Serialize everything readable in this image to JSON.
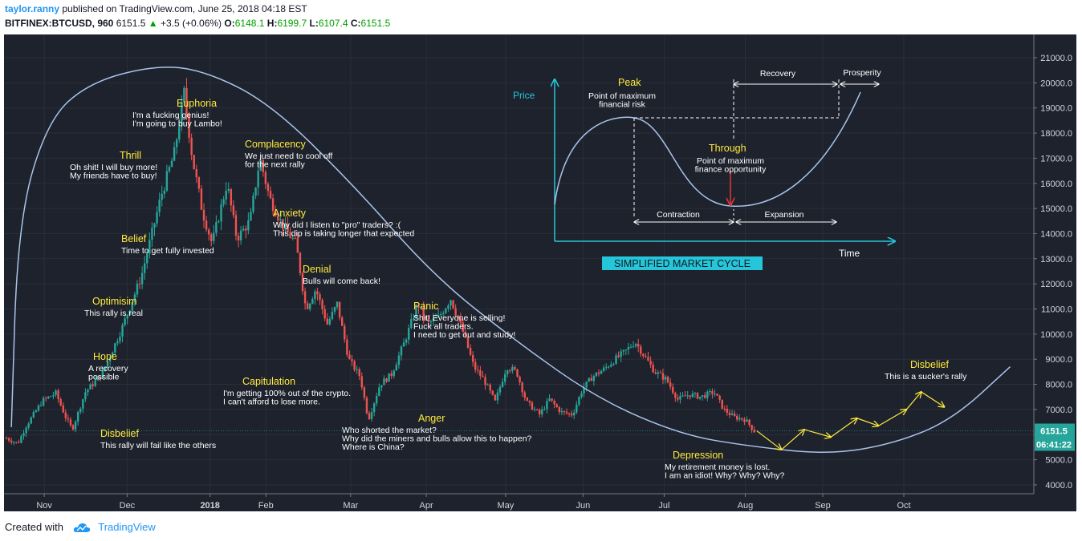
{
  "header": {
    "user": "taylor.ranny",
    "published": "published on TradingView.com, June 25, 2018 04:18 EST",
    "symbol": "BITFINEX:BTCUSD, 960",
    "last": "6151.5",
    "change": "+3.5 (+0.06%)",
    "open_label": "O:",
    "open": "6148.1",
    "high_label": "H:",
    "high": "6199.7",
    "low_label": "L:",
    "low": "6107.4",
    "close_label": "C:",
    "close": "6151.5"
  },
  "footer": {
    "created": "Created with",
    "brand": "TradingView"
  },
  "colors": {
    "up": "#26a69a",
    "down": "#ef5350",
    "curve": "#a9c4ea",
    "yellow": "#ffeb3b",
    "cyan": "#26c6da",
    "badge": "#26a69a"
  },
  "price_badge": {
    "price": "6151.5",
    "countdown": "06:41:22"
  },
  "chart_data": {
    "type": "candlestick",
    "symbol": "BITFINEX:BTCUSD",
    "interval": "960",
    "x_ticks": [
      "Nov",
      "Dec",
      "2018",
      "Feb",
      "Mar",
      "Apr",
      "May",
      "Jun",
      "Jul",
      "Aug",
      "Sep",
      "Oct"
    ],
    "y_ticks": [
      "4000.0",
      "5000.0",
      "6000.0",
      "7000.0",
      "8000.0",
      "9000.0",
      "10000.0",
      "11000.0",
      "12000.0",
      "13000.0",
      "14000.0",
      "15000.0",
      "16000.0",
      "17000.0",
      "18000.0",
      "19000.0",
      "20000.0",
      "21000.0"
    ],
    "ylim": [
      3500,
      21900
    ],
    "price_path": [
      {
        "x": 0.0,
        "y": 5850
      },
      {
        "x": 0.7,
        "y": 5650
      },
      {
        "x": 1.2,
        "y": 6350
      },
      {
        "x": 2.2,
        "y": 7350
      },
      {
        "x": 3.0,
        "y": 7650
      },
      {
        "x": 3.6,
        "y": 6700
      },
      {
        "x": 4.0,
        "y": 6200
      },
      {
        "x": 4.8,
        "y": 7700
      },
      {
        "x": 5.8,
        "y": 8400
      },
      {
        "x": 7.0,
        "y": 10200
      },
      {
        "x": 8.2,
        "y": 12300
      },
      {
        "x": 9.4,
        "y": 15500
      },
      {
        "x": 10.2,
        "y": 17200
      },
      {
        "x": 10.8,
        "y": 19600
      },
      {
        "x": 11.3,
        "y": 17000
      },
      {
        "x": 11.9,
        "y": 14900
      },
      {
        "x": 12.5,
        "y": 13600
      },
      {
        "x": 13.4,
        "y": 16000
      },
      {
        "x": 14.0,
        "y": 13800
      },
      {
        "x": 14.8,
        "y": 14500
      },
      {
        "x": 15.4,
        "y": 17000
      },
      {
        "x": 16.0,
        "y": 15400
      },
      {
        "x": 16.8,
        "y": 14300
      },
      {
        "x": 17.6,
        "y": 13600
      },
      {
        "x": 18.2,
        "y": 11000
      },
      {
        "x": 18.8,
        "y": 11800
      },
      {
        "x": 19.5,
        "y": 10400
      },
      {
        "x": 20.1,
        "y": 11200
      },
      {
        "x": 20.8,
        "y": 9000
      },
      {
        "x": 21.5,
        "y": 8300
      },
      {
        "x": 22.0,
        "y": 6600
      },
      {
        "x": 22.7,
        "y": 8000
      },
      {
        "x": 23.4,
        "y": 8400
      },
      {
        "x": 24.2,
        "y": 9700
      },
      {
        "x": 25.0,
        "y": 11200
      },
      {
        "x": 25.6,
        "y": 10400
      },
      {
        "x": 26.3,
        "y": 10700
      },
      {
        "x": 27.0,
        "y": 11400
      },
      {
        "x": 27.8,
        "y": 10000
      },
      {
        "x": 28.4,
        "y": 8700
      },
      {
        "x": 29.0,
        "y": 8200
      },
      {
        "x": 29.7,
        "y": 7300
      },
      {
        "x": 30.4,
        "y": 8700
      },
      {
        "x": 31.0,
        "y": 8500
      },
      {
        "x": 31.6,
        "y": 7300
      },
      {
        "x": 32.4,
        "y": 6800
      },
      {
        "x": 33.0,
        "y": 7400
      },
      {
        "x": 33.7,
        "y": 6900
      },
      {
        "x": 34.4,
        "y": 6800
      },
      {
        "x": 35.0,
        "y": 7800
      },
      {
        "x": 35.6,
        "y": 8300
      },
      {
        "x": 36.3,
        "y": 8600
      },
      {
        "x": 37.0,
        "y": 9000
      },
      {
        "x": 37.6,
        "y": 9300
      },
      {
        "x": 38.2,
        "y": 9700
      },
      {
        "x": 38.8,
        "y": 9100
      },
      {
        "x": 39.4,
        "y": 8500
      },
      {
        "x": 40.1,
        "y": 8200
      },
      {
        "x": 40.8,
        "y": 7400
      },
      {
        "x": 41.5,
        "y": 7600
      },
      {
        "x": 42.2,
        "y": 7500
      },
      {
        "x": 43.0,
        "y": 7700
      },
      {
        "x": 43.6,
        "y": 7000
      },
      {
        "x": 44.2,
        "y": 6700
      },
      {
        "x": 44.9,
        "y": 6600
      },
      {
        "x": 45.5,
        "y": 6100
      }
    ],
    "projection_path": [
      {
        "x": 45.6,
        "y": 6150
      },
      {
        "x": 47.1,
        "y": 5400
      },
      {
        "x": 48.5,
        "y": 6200
      },
      {
        "x": 50.1,
        "y": 5900
      },
      {
        "x": 51.7,
        "y": 6650
      },
      {
        "x": 53.0,
        "y": 6350
      },
      {
        "x": 54.7,
        "y": 7000
      },
      {
        "x": 55.6,
        "y": 7700
      },
      {
        "x": 57.0,
        "y": 7100
      }
    ],
    "cycle_curve": [
      {
        "x": 0.3,
        "y": 6300
      },
      {
        "x": 0.7,
        "y": 14500
      },
      {
        "x": 2.5,
        "y": 18500
      },
      {
        "x": 5.0,
        "y": 20000
      },
      {
        "x": 9.0,
        "y": 20700
      },
      {
        "x": 12.0,
        "y": 20500
      },
      {
        "x": 16.0,
        "y": 19200
      },
      {
        "x": 21.0,
        "y": 16000
      },
      {
        "x": 26.0,
        "y": 12300
      },
      {
        "x": 31.0,
        "y": 9700
      },
      {
        "x": 36.0,
        "y": 7400
      },
      {
        "x": 41.0,
        "y": 6000
      },
      {
        "x": 45.0,
        "y": 5550
      },
      {
        "x": 50.0,
        "y": 5200
      },
      {
        "x": 54.0,
        "y": 5650
      },
      {
        "x": 57.5,
        "y": 6600
      },
      {
        "x": 61.0,
        "y": 8700
      }
    ],
    "annotations": [
      {
        "title": "Disbelief",
        "lines": [
          "This rally will fail like the others"
        ]
      },
      {
        "title": "Hope",
        "lines": [
          "A recovery",
          "possible"
        ]
      },
      {
        "title": "Optimisim",
        "lines": [
          "This rally is real"
        ]
      },
      {
        "title": "Belief",
        "lines": [
          "Time to get fully invested"
        ]
      },
      {
        "title": "Thrill",
        "lines": [
          "Oh shit! I will buy more!",
          "My friends have to buy!"
        ]
      },
      {
        "title": "Euphoria",
        "lines": [
          "I'm a fucking genius!",
          "I'm going to buy Lambo!"
        ]
      },
      {
        "title": "Complacency",
        "lines": [
          "We just need to cool off",
          "for the next rally"
        ]
      },
      {
        "title": "Anxiety",
        "lines": [
          "Why did I listen to  \"pro\" traders? :(",
          "This dip is taking longer that expected"
        ]
      },
      {
        "title": "Denial",
        "lines": [
          "Bulls will come back!"
        ]
      },
      {
        "title": "Panic",
        "lines": [
          "Shit! Everyone is selling!",
          "Fuck all traders.",
          "I need to get out and study!"
        ]
      },
      {
        "title": "Capitulation",
        "lines": [
          "I'm getting 100% out of the crypto.",
          "I can't afford to lose more."
        ]
      },
      {
        "title": "Anger",
        "lines": [
          "Who shorted the market?",
          "Why did the miners and bulls allow this to happen?",
          "Where is China?"
        ]
      },
      {
        "title": "Depression",
        "lines": [
          "My retirement money is lost.",
          "I am an idiot! Why? Why? Why?"
        ]
      },
      {
        "title": "Disbelief",
        "lines": [
          "This is a sucker's rally"
        ]
      }
    ],
    "inset": {
      "caption": "SIMPLIFIED MARKET CYCLE",
      "y_axis_label": "Price",
      "x_axis_label": "Time",
      "peak_title": "Peak",
      "peak_lines": [
        "Point of maximum",
        "financial risk"
      ],
      "trough_title": "Through",
      "trough_lines": [
        "Point of maximum",
        "finance opportunity"
      ],
      "phases": [
        "Contraction",
        "Expansion",
        "Recovery",
        "Prosperity"
      ]
    }
  }
}
